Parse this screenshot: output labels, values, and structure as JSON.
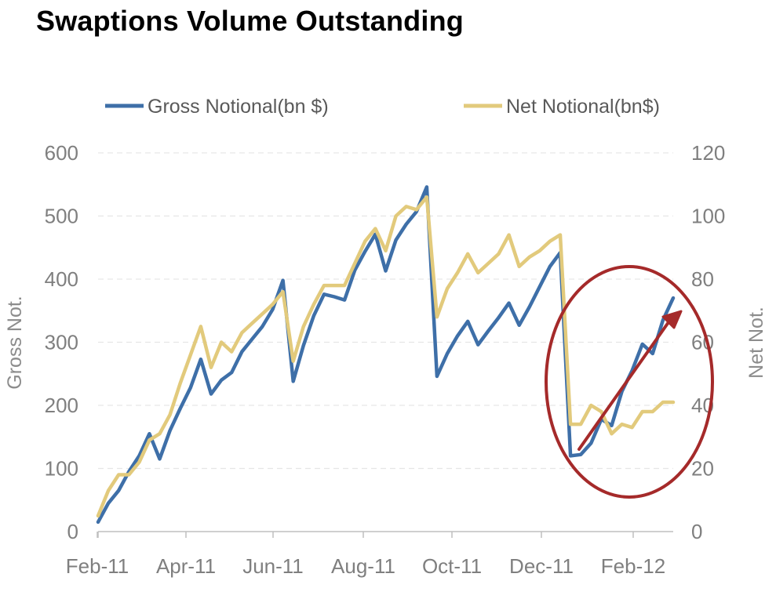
{
  "chart_data": {
    "type": "line",
    "title": "Swaptions Volume Outstanding",
    "y_left_label": "Gross Not.",
    "y_right_label": "Net Not.",
    "y_left_range": [
      0,
      600
    ],
    "y_right_range": [
      0,
      120
    ],
    "y_left_ticks": [
      "0",
      "100",
      "200",
      "300",
      "400",
      "500",
      "600"
    ],
    "y_right_ticks": [
      "0",
      "20",
      "40",
      "60",
      "80",
      "100",
      "120"
    ],
    "x_tick_labels": [
      "Feb-11",
      "Apr-11",
      "Jun-11",
      "Aug-11",
      "Oct-11",
      "Dec-11",
      "Feb-12"
    ],
    "grid": "horizontal-dashed",
    "legend_position": "top",
    "series": [
      {
        "name": "Gross Notional(bn $)",
        "axis": "left",
        "color": "#3e6fa8",
        "values": [
          15,
          45,
          65,
          95,
          120,
          155,
          115,
          160,
          195,
          228,
          273,
          218,
          240,
          252,
          285,
          305,
          325,
          352,
          398,
          238,
          295,
          342,
          376,
          372,
          367,
          414,
          444,
          471,
          413,
          462,
          487,
          507,
          546,
          246,
          282,
          310,
          333,
          296,
          318,
          339,
          362,
          327,
          356,
          388,
          420,
          442,
          120,
          122,
          140,
          178,
          168,
          222,
          255,
          297,
          282,
          335,
          370
        ]
      },
      {
        "name": "Net Notional(bn$)",
        "axis": "right",
        "color": "#e2ca7c",
        "values": [
          5,
          13,
          18,
          18,
          22,
          29,
          31,
          37,
          47,
          56,
          65,
          52,
          60,
          57,
          63,
          66,
          69,
          72,
          76,
          54,
          65,
          72,
          78,
          78,
          78,
          85,
          92,
          96,
          89,
          100,
          103,
          102,
          106,
          68,
          77,
          82,
          88,
          82,
          85,
          88,
          94,
          84,
          87,
          89,
          92,
          94,
          34,
          34,
          40,
          38,
          31,
          34,
          33,
          38,
          38,
          41,
          41
        ]
      }
    ],
    "annotations": [
      {
        "type": "ellipse",
        "color": "#a52a2a"
      },
      {
        "type": "arrow",
        "color": "#a52a2a"
      }
    ]
  }
}
